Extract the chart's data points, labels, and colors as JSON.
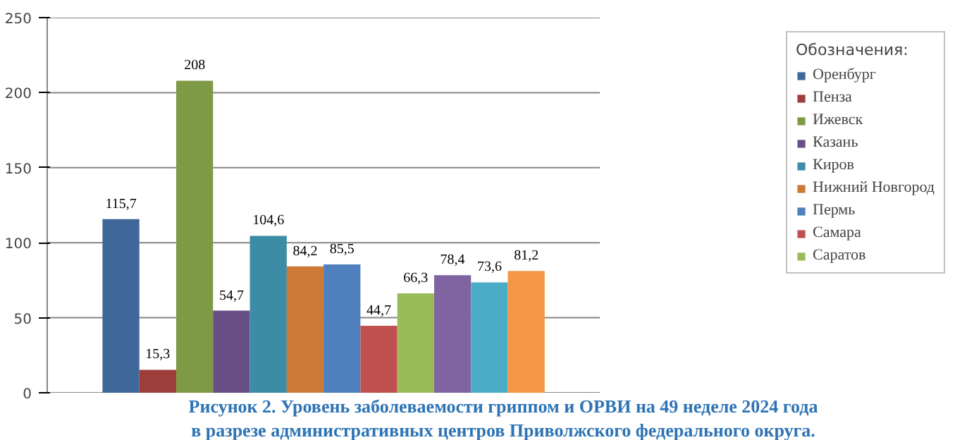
{
  "chart_data": {
    "type": "bar",
    "title": "Рисунок 2. Уровень заболеваемости гриппом и ОРВИ на 49 неделе 2024 года в разрезе административных центров Приволжского федерального округа.",
    "legend_title": "Обозначения:",
    "categories": [
      null
    ],
    "ylim": [
      0,
      250
    ],
    "yticks": [
      0,
      50,
      100,
      150,
      200,
      250
    ],
    "grid": "y",
    "legend": "right",
    "series": [
      {
        "name": "Оренбург",
        "color": "#3f6799",
        "values": [
          115.7
        ],
        "value_labels": [
          "115,7"
        ]
      },
      {
        "name": "Пенза",
        "color": "#9e3e3b",
        "values": [
          15.3
        ],
        "value_labels": [
          "15,3"
        ]
      },
      {
        "name": "Ижевск",
        "color": "#7f9a47",
        "values": [
          208
        ],
        "value_labels": [
          "208"
        ]
      },
      {
        "name": "Казань",
        "color": "#684f86",
        "values": [
          54.7
        ],
        "value_labels": [
          "54,7"
        ]
      },
      {
        "name": "Киров",
        "color": "#3b8ca4",
        "values": [
          104.6
        ],
        "value_labels": [
          "104,6"
        ]
      },
      {
        "name": "Нижний Новгород",
        "color": "#cd7a37",
        "values": [
          84.2
        ],
        "value_labels": [
          "84,2"
        ]
      },
      {
        "name": "Пермь",
        "color": "#4f80bd",
        "values": [
          85.5
        ],
        "value_labels": [
          "85,5"
        ]
      },
      {
        "name": "Самара",
        "color": "#c0504d",
        "values": [
          44.7
        ],
        "value_labels": [
          "44,7"
        ]
      },
      {
        "name": "Саратов",
        "color": "#9bbb59",
        "values": [
          66.3
        ],
        "value_labels": [
          "66,3"
        ]
      },
      {
        "color": "#8064a2",
        "values": [
          78.4
        ],
        "value_labels": [
          "78,4"
        ]
      },
      {
        "color": "#4bacc6",
        "values": [
          73.6
        ],
        "value_labels": [
          "73,6"
        ]
      },
      {
        "color": "#f79646",
        "values": [
          81.2
        ],
        "value_labels": [
          "81,2"
        ]
      }
    ]
  }
}
